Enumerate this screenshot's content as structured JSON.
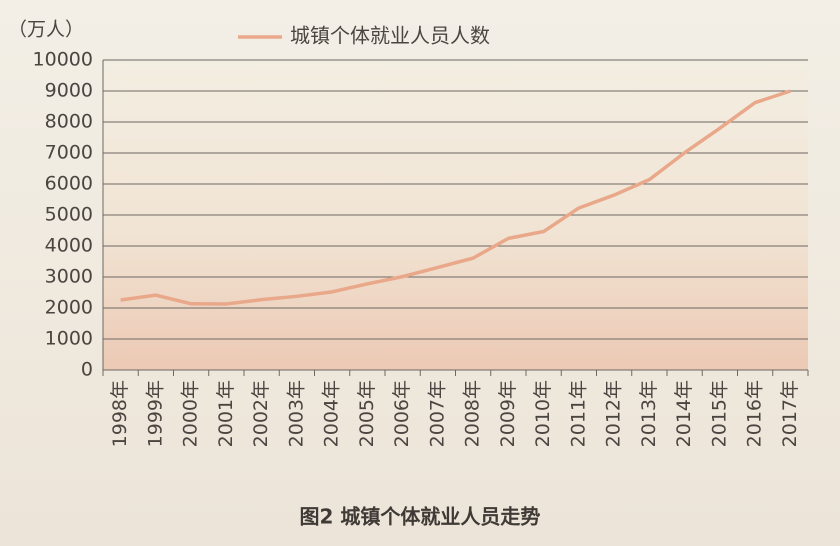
{
  "chart_data": {
    "type": "line",
    "y_label": "（万人）",
    "caption": "图2  城镇个体就业人员走势",
    "categories": [
      "1998年",
      "1999年",
      "2000年",
      "2001年",
      "2002年",
      "2003年",
      "2004年",
      "2005年",
      "2006年",
      "2007年",
      "2008年",
      "2009年",
      "2010年",
      "2011年",
      "2012年",
      "2013年",
      "2014年",
      "2015年",
      "2016年",
      "2017年"
    ],
    "series": [
      {
        "name": "城镇个体就业人员人数",
        "color": "#e9a88a",
        "values": [
          2259,
          2414,
          2136,
          2131,
          2269,
          2377,
          2521,
          2778,
          3012,
          3310,
          3609,
          4245,
          4467,
          5227,
          5643,
          6142,
          7009,
          7800,
          8627,
          9000
        ]
      }
    ],
    "ylim": [
      0,
      10000
    ],
    "yticks": [
      0,
      1000,
      2000,
      3000,
      4000,
      5000,
      6000,
      7000,
      8000,
      9000,
      10000
    ],
    "grid": true
  }
}
